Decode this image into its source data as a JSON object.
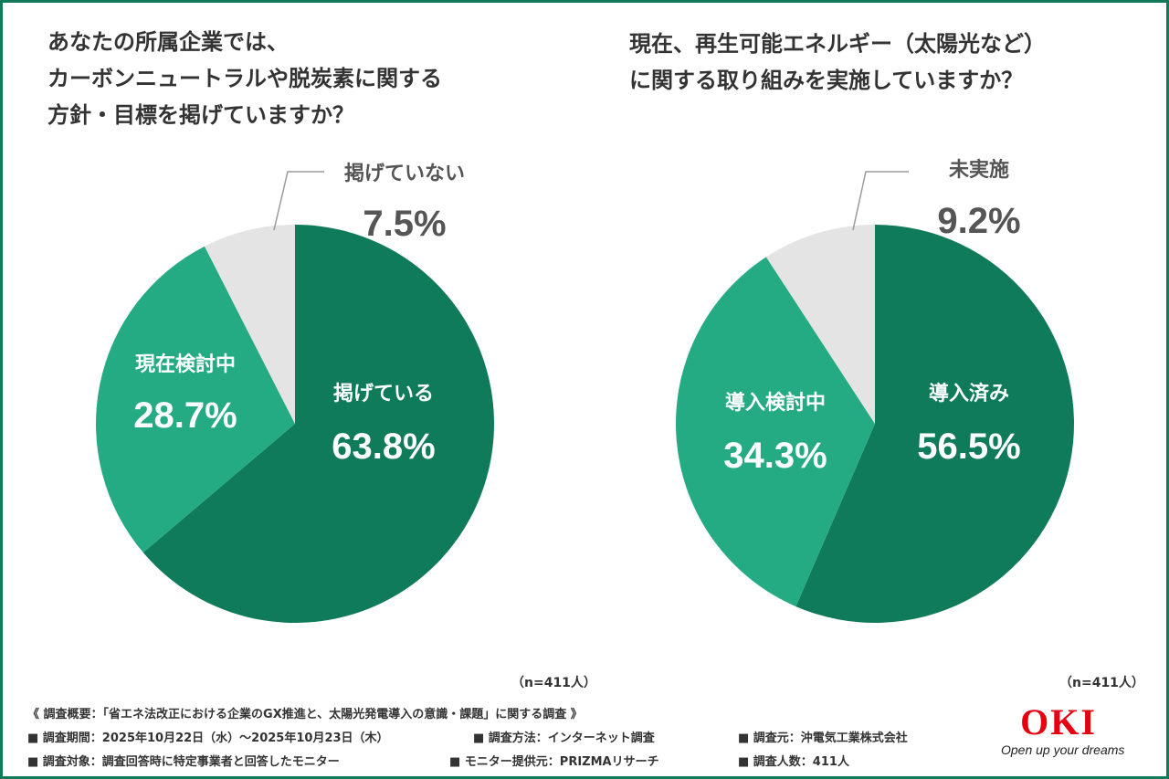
{
  "frame_color": "#127a58",
  "chart_data": [
    {
      "type": "pie",
      "title": "あなたの所属企業では、カーボンニュートラルや脱炭素に関する方針・目標を掲げていますか？",
      "title_lines": [
        "あなたの所属企業では、",
        "カーボンニュートラルや脱炭素に関する",
        "方針・目標を掲げていますか？"
      ],
      "sample_note": "（n=411人）",
      "slices": [
        {
          "label": "掲げている",
          "value": 63.8,
          "value_text": "63.8%",
          "color": "#0f7b5a",
          "text_color": "#ffffff"
        },
        {
          "label": "現在検討中",
          "value": 28.7,
          "value_text": "28.7%",
          "color": "#24ab83",
          "text_color": "#ffffff"
        },
        {
          "label": "掲げていない",
          "value": 7.5,
          "value_text": "7.5%",
          "color": "#e4e4e4",
          "text_color": "#555555"
        }
      ]
    },
    {
      "type": "pie",
      "title": "現在、再生可能エネルギー（太陽光など）に関する取り組みを実施していますか？",
      "title_lines": [
        "現在、再生可能エネルギー（太陽光など）",
        "に関する取り組みを実施していますか？"
      ],
      "sample_note": "（n=411人）",
      "slices": [
        {
          "label": "導入済み",
          "value": 56.5,
          "value_text": "56.5%",
          "color": "#0f7b5a",
          "text_color": "#ffffff"
        },
        {
          "label": "導入検討中",
          "value": 34.3,
          "value_text": "34.3%",
          "color": "#24ab83",
          "text_color": "#ffffff"
        },
        {
          "label": "未実施",
          "value": 9.2,
          "value_text": "9.2%",
          "color": "#e4e4e4",
          "text_color": "#555555"
        }
      ]
    }
  ],
  "survey": {
    "overview": "《 調査概要：「省エネ法改正における企業のGX推進と、太陽光発電導入の意識・課題」に関する調査 》",
    "period": "■ 調査期間：2025年10月22日（水）～2025年10月23日（木）",
    "method": "■ 調査方法：インターネット調査",
    "organizer": "■ 調査元：沖電気工業株式会社",
    "target": "■ 調査対象：調査回答時に特定事業者と回答したモニター",
    "provider": "■ モニター提供元：PRIZMAリサーチ",
    "respondents": "■ 調査人数：411人"
  },
  "logo": {
    "mark": "OKI",
    "tagline": "Open up your dreams",
    "mark_color": "#e60012"
  }
}
